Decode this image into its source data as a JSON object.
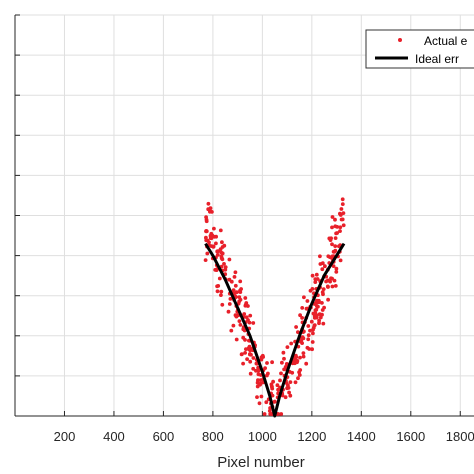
{
  "chart_data": {
    "type": "scatter",
    "title": "",
    "xlabel": "Pixel number",
    "ylabel": "",
    "xlim": [
      0,
      1900
    ],
    "ylim": [
      0,
      1
    ],
    "grid": true,
    "legend_position": "top-right",
    "x_ticks": [
      "200",
      "400",
      "600",
      "800",
      "1000",
      "1200",
      "1400",
      "1600",
      "1800"
    ],
    "y_tick_count": 10,
    "series": [
      {
        "name": "Actual e",
        "marker": "dot",
        "color": "#e8202a",
        "x_range": [
          770,
          1330
        ],
        "min_at": 1050,
        "points_count": 420
      },
      {
        "name": "Ideal err",
        "line": "solid",
        "color": "#000000",
        "x": [
          770,
          800,
          850,
          900,
          950,
          1000,
          1030,
          1050,
          1070,
          1100,
          1150,
          1200,
          1250,
          1300,
          1330
        ],
        "y": [
          0.43,
          0.4,
          0.34,
          0.27,
          0.2,
          0.11,
          0.05,
          0.0,
          0.05,
          0.11,
          0.2,
          0.28,
          0.35,
          0.4,
          0.43
        ]
      }
    ]
  }
}
